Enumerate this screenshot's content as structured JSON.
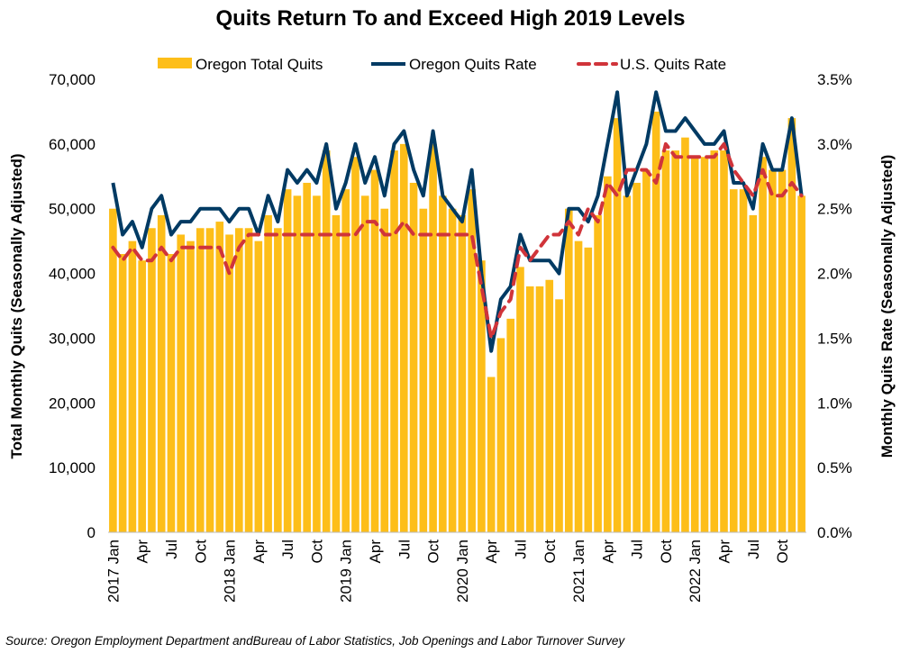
{
  "chart_data": {
    "type": "bar+line",
    "title": "Quits Return To and Exceed High 2019 Levels",
    "ylabel_left": "Total Monthly Quits (Seasonally Adjusted)",
    "ylabel_right": "Monthly Quits Rate (Seasonally Adjusted)",
    "ylim_left": [
      0,
      70000
    ],
    "ylim_right": [
      0,
      3.5
    ],
    "yticks_left": [
      "0",
      "10,000",
      "20,000",
      "30,000",
      "40,000",
      "50,000",
      "60,000",
      "70,000"
    ],
    "yticks_right": [
      "0.0%",
      "0.5%",
      "1.0%",
      "1.5%",
      "2.0%",
      "2.5%",
      "3.0%",
      "3.5%"
    ],
    "years": [
      "2017",
      "2018",
      "2019",
      "2020",
      "2021",
      "2022"
    ],
    "month_ticks": [
      "Jan",
      "Apr",
      "Jul",
      "Oct"
    ],
    "legend": [
      "Oregon Total Quits",
      "Oregon Quits Rate",
      "U.S. Quits Rate"
    ],
    "legend_position": "top",
    "series": [
      {
        "name": "Oregon Total Quits",
        "axis": "left",
        "color": "#FDBE19",
        "values": [
          50000,
          43000,
          45000,
          42000,
          47000,
          49000,
          43000,
          46000,
          45000,
          47000,
          47000,
          48000,
          46000,
          47000,
          47000,
          45000,
          49000,
          47000,
          53000,
          52000,
          54000,
          52000,
          59000,
          49000,
          53000,
          58000,
          52000,
          56000,
          50000,
          59000,
          60000,
          54000,
          50000,
          60000,
          52000,
          50000,
          49000,
          53000,
          42000,
          24000,
          30000,
          33000,
          41000,
          38000,
          38000,
          39000,
          36000,
          50000,
          45000,
          44000,
          49000,
          55000,
          64000,
          52000,
          54000,
          56000,
          65000,
          59000,
          59000,
          61000,
          58000,
          58000,
          59000,
          59000,
          53000,
          53000,
          49000,
          58000,
          56000,
          56000,
          64000,
          52000
        ]
      },
      {
        "name": "Oregon Quits Rate",
        "axis": "right",
        "color": "#003A63",
        "values": [
          2.7,
          2.3,
          2.4,
          2.2,
          2.5,
          2.6,
          2.3,
          2.4,
          2.4,
          2.5,
          2.5,
          2.5,
          2.4,
          2.5,
          2.5,
          2.3,
          2.6,
          2.4,
          2.8,
          2.7,
          2.8,
          2.7,
          3.0,
          2.5,
          2.7,
          3.0,
          2.7,
          2.9,
          2.6,
          3.0,
          3.1,
          2.8,
          2.6,
          3.1,
          2.6,
          2.5,
          2.4,
          2.8,
          2.0,
          1.4,
          1.8,
          1.9,
          2.3,
          2.1,
          2.1,
          2.1,
          2.0,
          2.5,
          2.5,
          2.4,
          2.6,
          3.0,
          3.4,
          2.6,
          2.8,
          3.0,
          3.4,
          3.1,
          3.1,
          3.2,
          3.1,
          3.0,
          3.0,
          3.1,
          2.7,
          2.7,
          2.5,
          3.0,
          2.8,
          2.8,
          3.2,
          2.6
        ]
      },
      {
        "name": "U.S. Quits Rate",
        "axis": "right",
        "color": "#D0343A",
        "values": [
          2.2,
          2.1,
          2.2,
          2.1,
          2.1,
          2.2,
          2.1,
          2.2,
          2.2,
          2.2,
          2.2,
          2.2,
          2.0,
          2.2,
          2.3,
          2.3,
          2.3,
          2.3,
          2.3,
          2.3,
          2.3,
          2.3,
          2.3,
          2.3,
          2.3,
          2.3,
          2.4,
          2.4,
          2.3,
          2.3,
          2.4,
          2.3,
          2.3,
          2.3,
          2.3,
          2.3,
          2.3,
          2.3,
          1.9,
          1.5,
          1.7,
          1.8,
          2.2,
          2.1,
          2.2,
          2.3,
          2.3,
          2.4,
          2.3,
          2.5,
          2.4,
          2.7,
          2.6,
          2.8,
          2.8,
          2.8,
          2.7,
          3.0,
          2.9,
          2.9,
          2.9,
          2.9,
          2.9,
          3.0,
          2.8,
          2.7,
          2.6,
          2.8,
          2.6,
          2.6,
          2.7,
          2.6
        ]
      }
    ]
  },
  "source": "Source: Oregon Employment Department andBureau of Labor Statistics, Job Openings and Labor Turnover Survey"
}
